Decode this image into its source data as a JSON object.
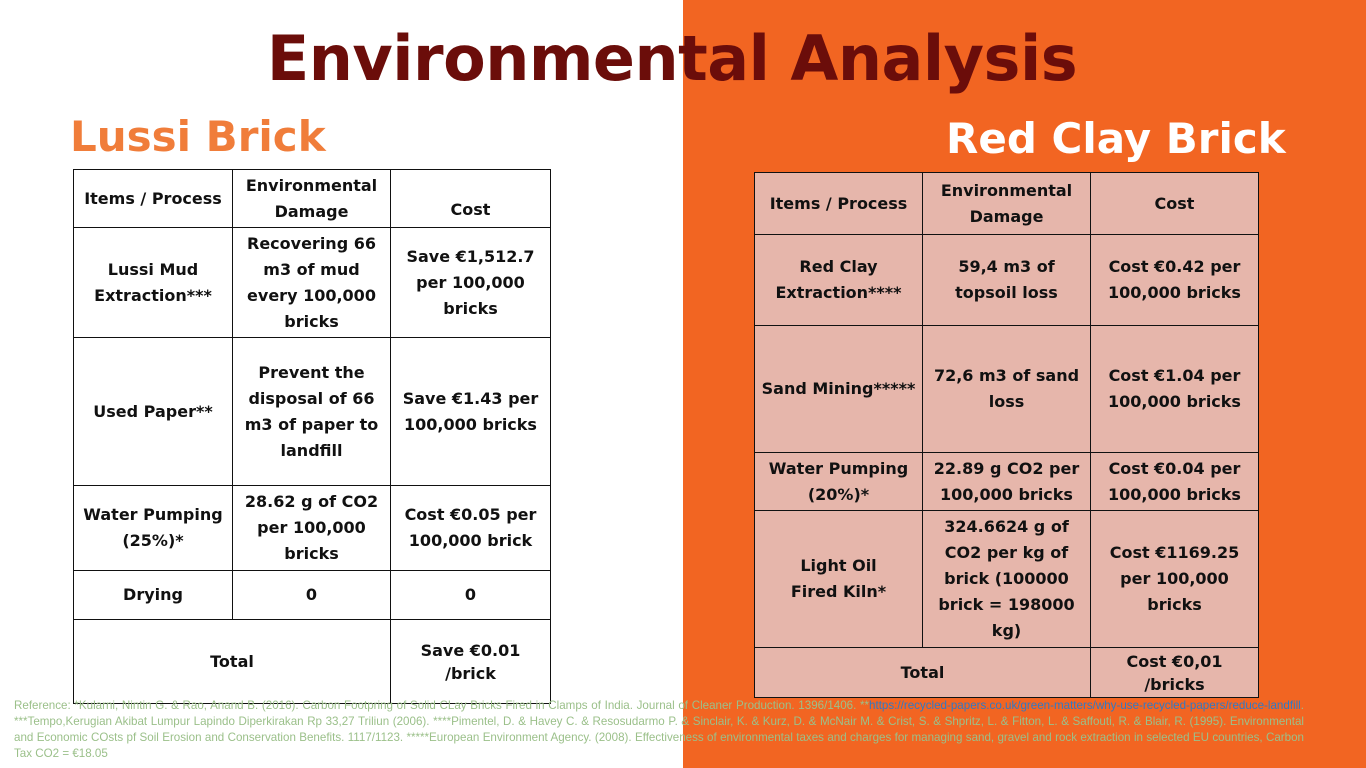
{
  "title": "Environmental Analysis",
  "left_heading": "Lussi Brick",
  "right_heading": "Red Clay Brick",
  "lussi_table": {
    "headers": [
      "Items / Process",
      "Environmental Damage",
      "Cost"
    ],
    "rows": [
      [
        "Lussi Mud Extraction***",
        "Recovering 66 m3 of mud every 100,000 bricks",
        "Save €1,512.7 per 100,000 bricks"
      ],
      [
        "Used Paper**",
        "Prevent the disposal of 66 m3 of paper to landfill",
        "Save €1.43  per 100,000 bricks"
      ],
      [
        "Water Pumping (25%)*",
        "28.62 g of CO2 per 100,000 bricks",
        "Cost €0.05 per 100,000 brick"
      ],
      [
        "Drying",
        "0",
        "0"
      ]
    ],
    "total_label": "Total",
    "total_value": "Save €0.01 /brick"
  },
  "red_table": {
    "headers": [
      "Items / Process",
      "Environmental Damage",
      "Cost"
    ],
    "rows": [
      [
        "Red Clay Extraction****",
        "59,4 m3 of topsoil loss",
        "Cost €0.42 per 100,000 bricks"
      ],
      [
        "Sand Mining*****",
        "72,6 m3 of sand loss",
        "Cost €1.04 per 100,000 bricks"
      ],
      [
        "Water Pumping (20%)*",
        "22.89 g CO2 per 100,000 bricks",
        "Cost €0.04 per 100,000 bricks"
      ],
      [
        "Light Oil Fired Kiln*",
        "324.6624 g of CO2 per kg of brick (100000 brick = 198000 kg)",
        "Cost €1169.25 per 100,000 bricks"
      ]
    ],
    "total_label": "Total",
    "total_value": "Cost €0,01 /bricks"
  },
  "references": {
    "before_link": "Reference: *Kularni, Nintin G. & Rao, Anand B. (2016). Carbon Footpring of Solid CLay Bricks Fired in Clamps of India. Journal of Cleaner Production. 1396/1406. **",
    "link": "https://recycled-papers.co.uk/green-matters/why-use-recycled-papers/reduce-landfill",
    "after_link": ". ***Tempo,Kerugian Akibat Lumpur Lapindo Diperkirakan Rp 33,27 Triliun (2006). ****Pimentel, D. & Havey C. & Resosudarmo P. & Sinclair, K. & Kurz, D. & McNair M. & Crist, S. & Shpritz, L. & Fitton, L. & Saffouti, R. & Blair, R. (1995). Environmental and Economic COsts pf Soil Erosion and Conservation Benefits. 1117/1123. *****European Environment Agency. (2008). Effectiveness of environmental taxes and charges for managing sand, gravel  and rock extraction in selected EU countries, Carbon Tax CO2 = €18.05"
  },
  "colors": {
    "title": "#6b0d0a",
    "right_background": "#f26522",
    "left_heading": "#f07d3a",
    "right_table_fill": "#e6b6ab",
    "reference_text": "#9bc08a",
    "reference_link": "#2f79c6"
  }
}
